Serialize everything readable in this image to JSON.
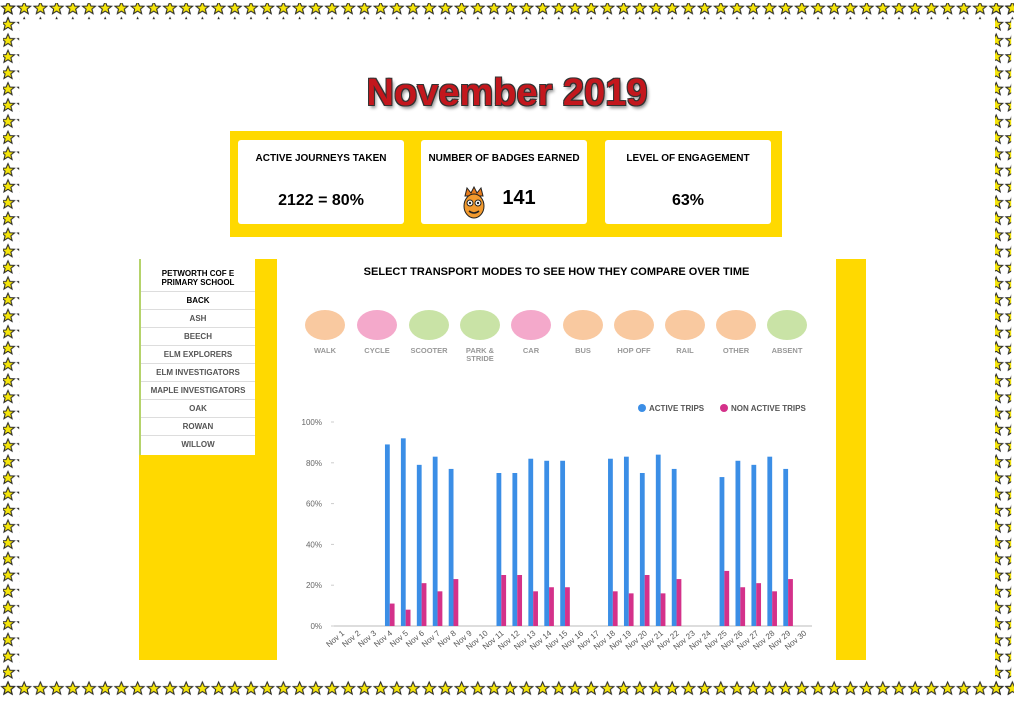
{
  "header": {
    "title": "November 2019"
  },
  "stats": [
    {
      "label": "ACTIVE JOURNEYS TAKEN",
      "value": "2122 = 80%"
    },
    {
      "label": "NUMBER OF BADGES EARNED",
      "value": "141"
    },
    {
      "label": "LEVEL OF ENGAGEMENT",
      "value": "63%"
    }
  ],
  "sidebar": {
    "school": "PETWORTH COF E PRIMARY SCHOOL",
    "items": [
      "BACK",
      "ASH",
      "BEECH",
      "ELM EXPLORERS",
      "ELM INVESTIGATORS",
      "MAPLE INVESTIGATORS",
      "OAK",
      "ROWAN",
      "WILLOW"
    ]
  },
  "modes": {
    "heading": "SELECT TRANSPORT MODES TO SEE HOW THEY COMPARE OVER TIME",
    "items": [
      {
        "label": "WALK",
        "color": "#f9c9a0"
      },
      {
        "label": "CYCLE",
        "color": "#f4a9cb"
      },
      {
        "label": "SCOOTER",
        "color": "#c9e3a6"
      },
      {
        "label": "PARK & STRIDE",
        "color": "#c9e3a6"
      },
      {
        "label": "CAR",
        "color": "#f4a9cb"
      },
      {
        "label": "BUS",
        "color": "#f9c9a0"
      },
      {
        "label": "HOP OFF",
        "color": "#f9c9a0"
      },
      {
        "label": "RAIL",
        "color": "#f9c9a0"
      },
      {
        "label": "OTHER",
        "color": "#f9c9a0"
      },
      {
        "label": "ABSENT",
        "color": "#c9e3a6"
      }
    ]
  },
  "chart_data": {
    "type": "bar",
    "categories": [
      "Nov 1",
      "Nov 2",
      "Nov 3",
      "Nov 4",
      "Nov 5",
      "Nov 6",
      "Nov 7",
      "Nov 8",
      "Nov 9",
      "Nov 10",
      "Nov 11",
      "Nov 12",
      "Nov 13",
      "Nov 14",
      "Nov 15",
      "Nov 16",
      "Nov 17",
      "Nov 18",
      "Nov 19",
      "Nov 20",
      "Nov 21",
      "Nov 22",
      "Nov 23",
      "Nov 24",
      "Nov 25",
      "Nov 26",
      "Nov 27",
      "Nov 28",
      "Nov 29",
      "Nov 30"
    ],
    "series": [
      {
        "name": "ACTIVE TRIPS",
        "color": "#3b8ee6",
        "values": [
          0,
          0,
          0,
          89,
          92,
          79,
          83,
          77,
          0,
          0,
          75,
          75,
          82,
          81,
          81,
          0,
          0,
          82,
          83,
          75,
          84,
          77,
          0,
          0,
          73,
          81,
          79,
          83,
          77,
          0
        ]
      },
      {
        "name": "NON ACTIVE TRIPS",
        "color": "#d4318a",
        "values": [
          0,
          0,
          0,
          11,
          8,
          21,
          17,
          23,
          0,
          0,
          25,
          25,
          17,
          19,
          19,
          0,
          0,
          17,
          16,
          25,
          16,
          23,
          0,
          0,
          27,
          19,
          21,
          17,
          23,
          0
        ]
      }
    ],
    "ylim": [
      0,
      100
    ],
    "yticks": [
      {
        "value": 0,
        "label": "0%"
      },
      {
        "value": 20,
        "label": "20%"
      },
      {
        "value": 40,
        "label": "40%"
      },
      {
        "value": 60,
        "label": "60%"
      },
      {
        "value": 80,
        "label": "80%"
      },
      {
        "value": 100,
        "label": "100%"
      }
    ],
    "legend": "top-right"
  }
}
